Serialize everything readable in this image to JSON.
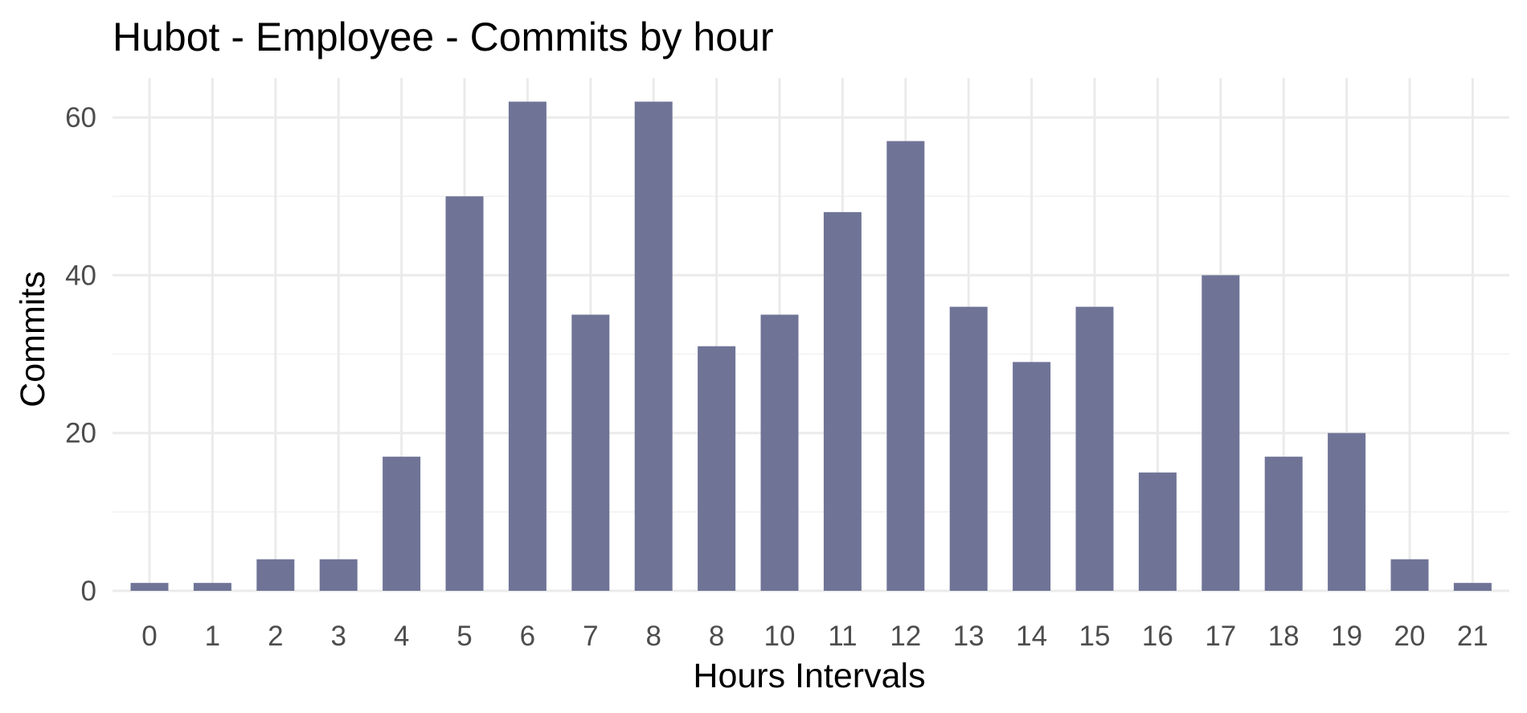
{
  "chart_data": {
    "type": "bar",
    "title": "Hubot - Employee - Commits by hour",
    "xlabel": "Hours Intervals",
    "ylabel": "Commits",
    "categories": [
      "0",
      "1",
      "2",
      "3",
      "4",
      "5",
      "6",
      "7",
      "8",
      "8",
      "10",
      "11",
      "12",
      "13",
      "14",
      "15",
      "16",
      "17",
      "18",
      "19",
      "20",
      "21"
    ],
    "values": [
      1,
      1,
      4,
      4,
      17,
      50,
      62,
      35,
      62,
      31,
      35,
      48,
      57,
      36,
      29,
      36,
      15,
      40,
      17,
      20,
      4,
      1
    ],
    "ylim": [
      0,
      65
    ],
    "yticks": [
      0,
      20,
      40,
      60
    ],
    "grid": true,
    "legend": "none",
    "colors": {
      "bar": "#6f7497"
    }
  }
}
